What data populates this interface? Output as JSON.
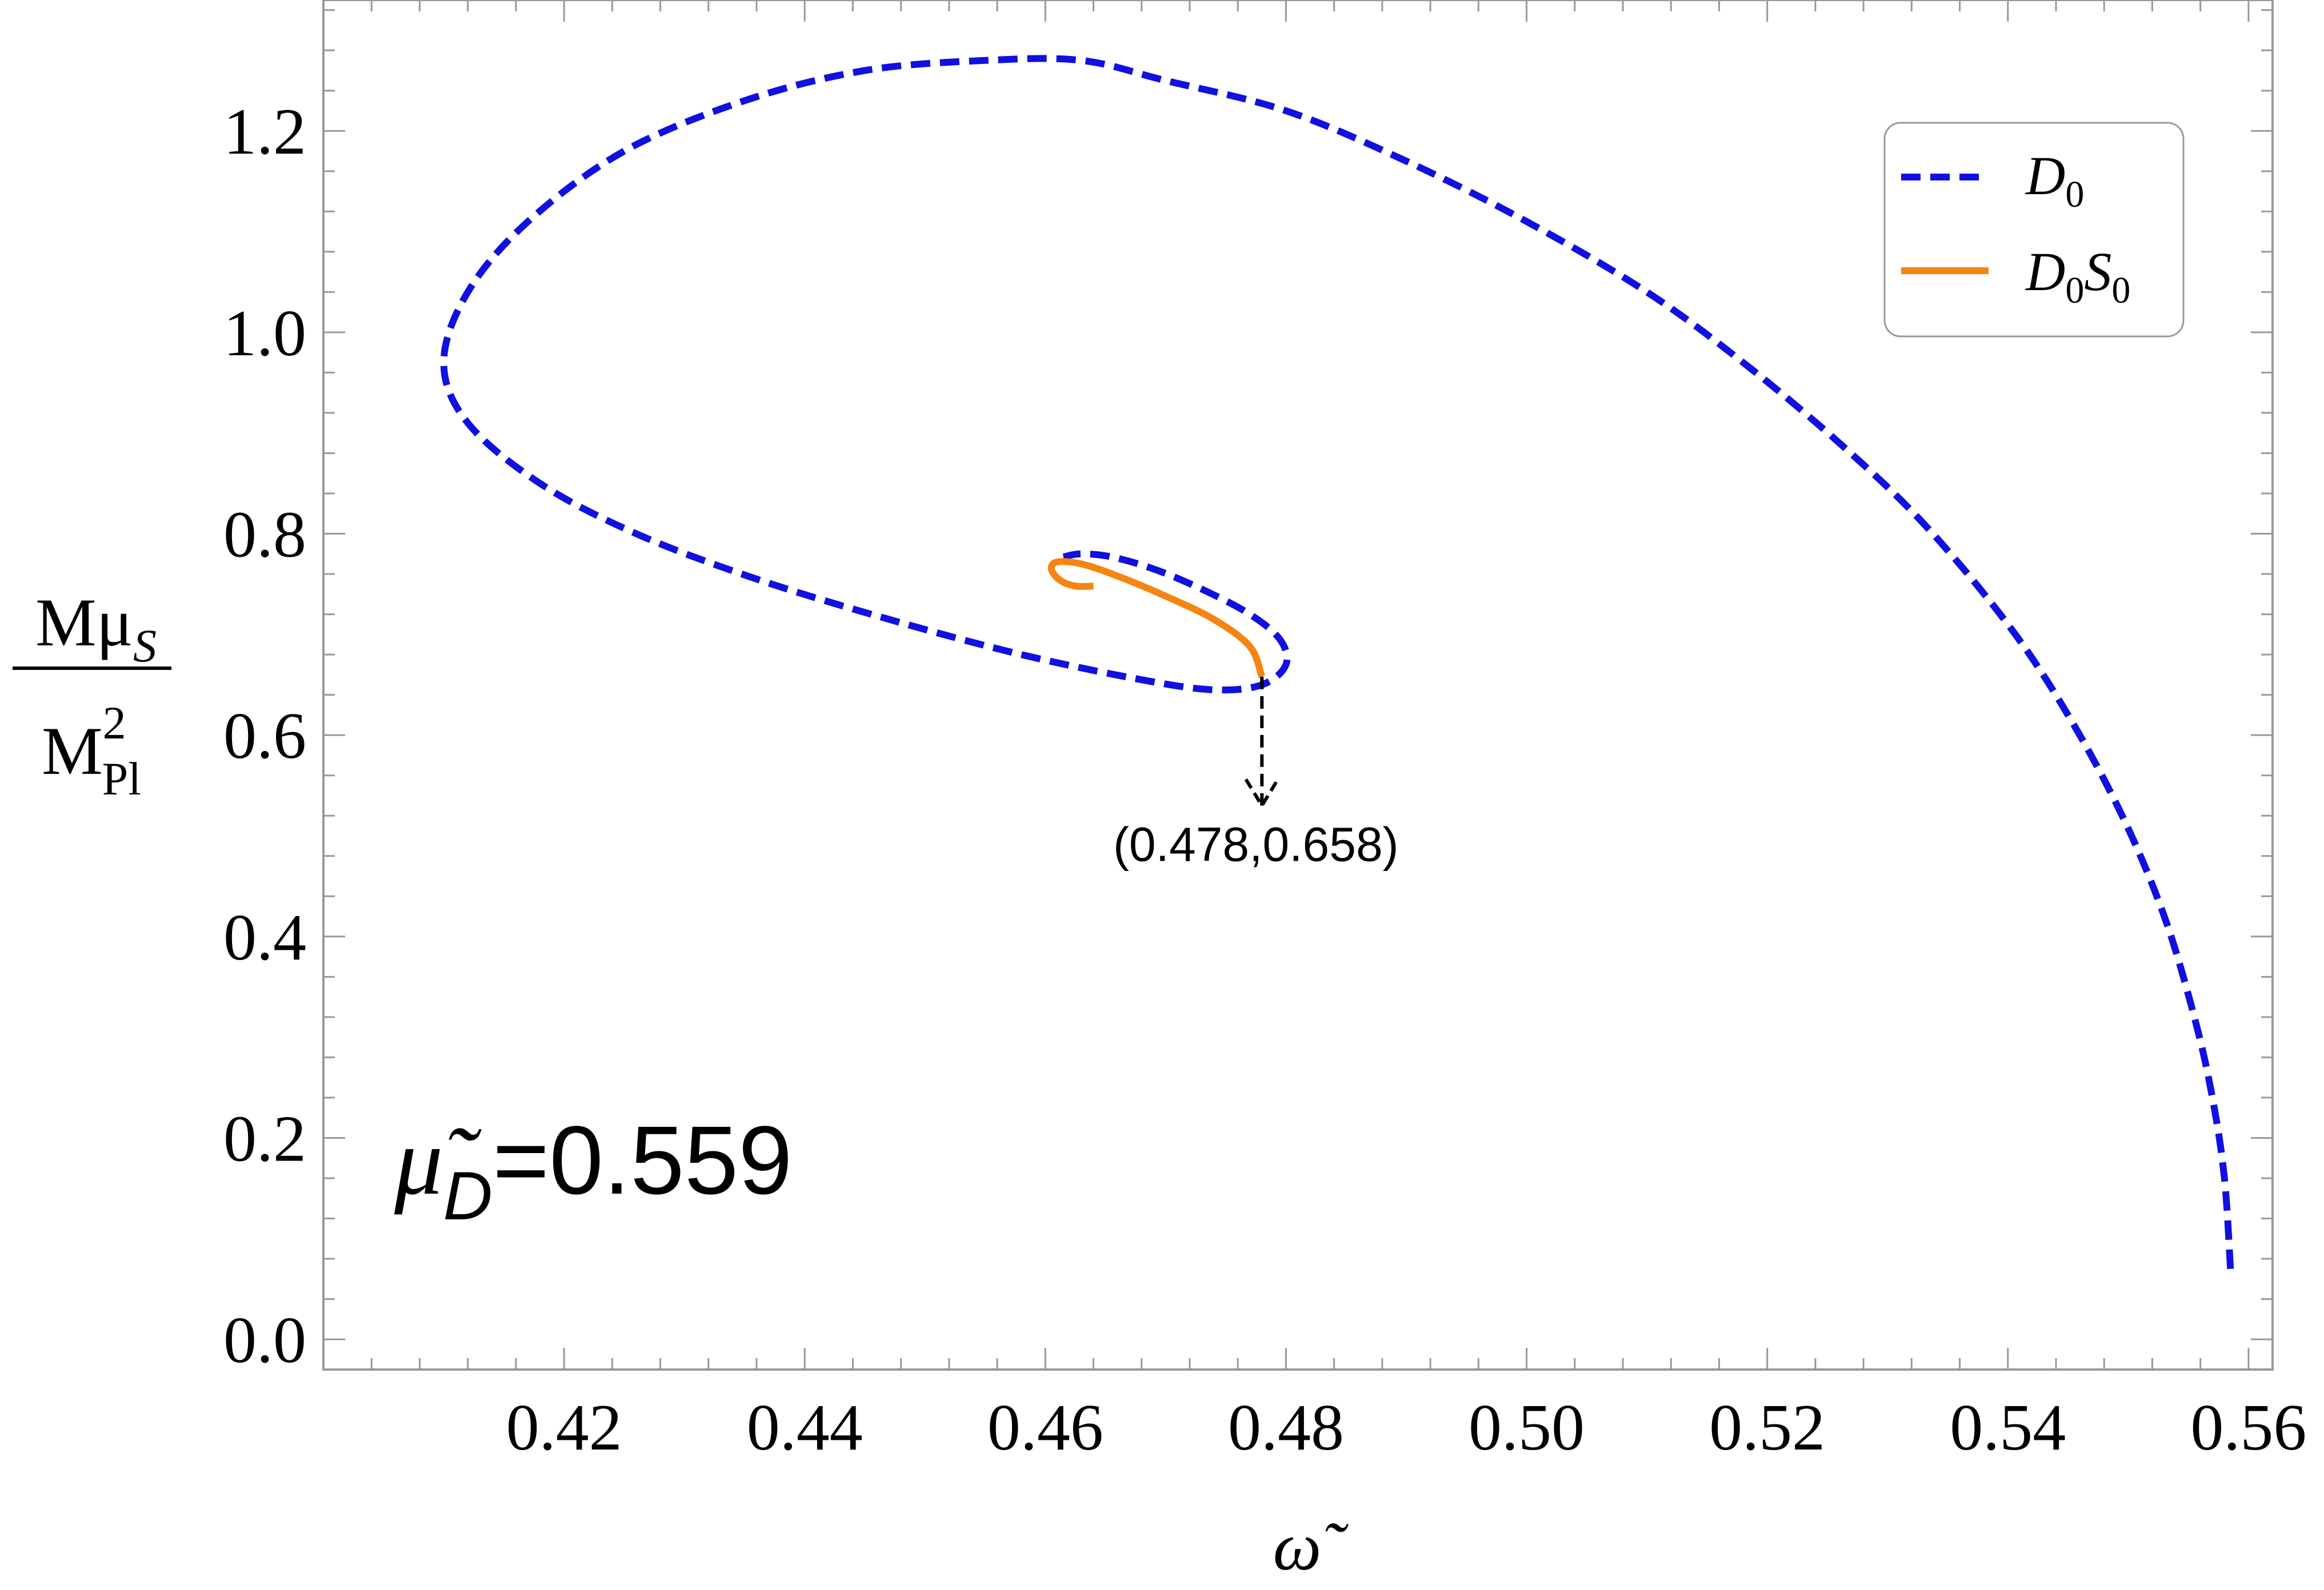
{
  "chart_data": {
    "type": "line",
    "xlabel": "ω̃",
    "ylabel": {
      "numerator_base": "Mμ",
      "numerator_sub": "S",
      "denominator_base": "M",
      "denominator_sub": "Pl",
      "denominator_sup": "2"
    },
    "xlim": [
      0.4,
      0.562
    ],
    "ylim": [
      -0.03,
      1.33
    ],
    "xticks": [
      0.42,
      0.44,
      0.46,
      0.48,
      0.5,
      0.52,
      0.54,
      0.56
    ],
    "xtick_labels": [
      "0.42",
      "0.44",
      "0.46",
      "0.48",
      "0.50",
      "0.52",
      "0.54",
      "0.56"
    ],
    "yticks": [
      0.0,
      0.2,
      0.4,
      0.6,
      0.8,
      1.0,
      1.2
    ],
    "ytick_labels": [
      "0.0",
      "0.2",
      "0.4",
      "0.6",
      "0.8",
      "1.0",
      "1.2"
    ],
    "grid": false,
    "legend_position": "top-right",
    "series": [
      {
        "name": "D₀",
        "legend_base": "D",
        "legend_sub": "0",
        "color": "#1010e0",
        "style": "dashed",
        "points": [
          [
            0.5585,
            0.07
          ],
          [
            0.558,
            0.16
          ],
          [
            0.557,
            0.24
          ],
          [
            0.5555,
            0.32
          ],
          [
            0.553,
            0.42
          ],
          [
            0.5495,
            0.52
          ],
          [
            0.545,
            0.62
          ],
          [
            0.54,
            0.71
          ],
          [
            0.533,
            0.81
          ],
          [
            0.526,
            0.89
          ],
          [
            0.518,
            0.97
          ],
          [
            0.51,
            1.04
          ],
          [
            0.5,
            1.11
          ],
          [
            0.49,
            1.17
          ],
          [
            0.48,
            1.22
          ],
          [
            0.47,
            1.25
          ],
          [
            0.463,
            1.27
          ],
          [
            0.455,
            1.27
          ],
          [
            0.445,
            1.26
          ],
          [
            0.435,
            1.23
          ],
          [
            0.425,
            1.18
          ],
          [
            0.417,
            1.11
          ],
          [
            0.412,
            1.04
          ],
          [
            0.41,
            0.97
          ],
          [
            0.412,
            0.91
          ],
          [
            0.418,
            0.85
          ],
          [
            0.426,
            0.8
          ],
          [
            0.436,
            0.755
          ],
          [
            0.447,
            0.715
          ],
          [
            0.458,
            0.68
          ],
          [
            0.468,
            0.655
          ],
          [
            0.474,
            0.645
          ],
          [
            0.478,
            0.65
          ],
          [
            0.48,
            0.67
          ],
          [
            0.4795,
            0.695
          ],
          [
            0.477,
            0.72
          ],
          [
            0.473,
            0.745
          ],
          [
            0.469,
            0.765
          ],
          [
            0.4655,
            0.777
          ],
          [
            0.463,
            0.78
          ],
          [
            0.4615,
            0.777
          ]
        ]
      },
      {
        "name": "D₀S₀",
        "legend_base": "D",
        "legend_sub": "0",
        "legend_base2": "S",
        "legend_sub2": "0",
        "color": "#f58512",
        "style": "solid",
        "points": [
          [
            0.478,
            0.658
          ],
          [
            0.477,
            0.688
          ],
          [
            0.474,
            0.715
          ],
          [
            0.47,
            0.738
          ],
          [
            0.466,
            0.758
          ],
          [
            0.463,
            0.77
          ],
          [
            0.461,
            0.772
          ],
          [
            0.4605,
            0.765
          ],
          [
            0.4612,
            0.754
          ],
          [
            0.4625,
            0.748
          ],
          [
            0.464,
            0.748
          ]
        ]
      }
    ],
    "annotations": [
      {
        "text": "(0.478,0.658)",
        "point": [
          0.478,
          0.658
        ],
        "label_x": 0.4775,
        "label_y": 0.475,
        "arrow_end_y": 0.53
      }
    ],
    "parameter_label": {
      "base": "μ̃",
      "sub": "D",
      "value": "=0.559"
    }
  }
}
